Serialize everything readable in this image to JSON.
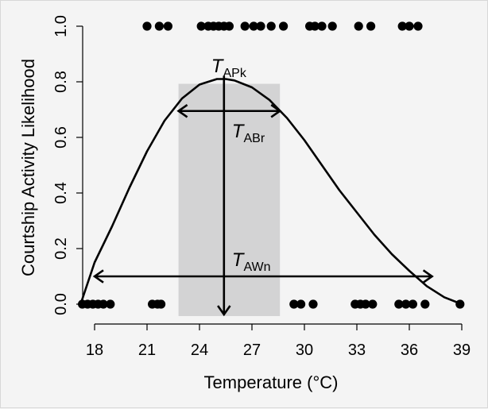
{
  "chart_data": {
    "type": "scatter",
    "xlabel": "Temperature (°C)",
    "ylabel": "Courtship Activity Likelihood",
    "xlim": [
      17,
      39
    ],
    "ylim": [
      0,
      1.0
    ],
    "x_ticks": [
      18,
      21,
      24,
      27,
      30,
      33,
      36,
      39
    ],
    "y_ticks": [
      0.0,
      0.2,
      0.4,
      0.6,
      0.8,
      1.0
    ],
    "y_tick_labels": [
      "0.0",
      "0.2",
      "0.4",
      "0.6",
      "0.8",
      "1.0"
    ],
    "grid": false,
    "points_y1": [
      21.0,
      21.7,
      22.2,
      24.1,
      24.5,
      24.8,
      25.1,
      25.4,
      25.7,
      26.6,
      27.1,
      27.5,
      28.1,
      28.8,
      30.3,
      30.6,
      31.0,
      31.6,
      33.1,
      33.8,
      35.6,
      36.0,
      36.5
    ],
    "points_y0": [
      17.3,
      17.6,
      17.9,
      18.2,
      18.5,
      18.9,
      21.3,
      21.6,
      21.8,
      29.4,
      29.8,
      30.5,
      32.9,
      33.2,
      33.5,
      33.9,
      35.4,
      35.8,
      36.2,
      36.9,
      38.9
    ],
    "curve": {
      "type": "fitted",
      "x": [
        17.2,
        18,
        19,
        20,
        21,
        22,
        23,
        24,
        25,
        25.5,
        26,
        27,
        28,
        29,
        30,
        31,
        32,
        33,
        34,
        35,
        36,
        37,
        38,
        39
      ],
      "y": [
        0.0,
        0.15,
        0.28,
        0.42,
        0.55,
        0.66,
        0.74,
        0.79,
        0.81,
        0.81,
        0.805,
        0.78,
        0.735,
        0.67,
        0.59,
        0.5,
        0.41,
        0.33,
        0.25,
        0.18,
        0.12,
        0.065,
        0.025,
        0.0
      ]
    },
    "peak": {
      "x": 25.4,
      "y": 0.81
    },
    "breadth_band": {
      "x_start": 22.8,
      "x_end": 28.6,
      "y": 0.695
    },
    "window": {
      "x_start": 18.0,
      "x_end": 37.3,
      "y": 0.1
    },
    "annotations": {
      "peak_label": {
        "main": "T",
        "sub": "APk"
      },
      "breadth_label": {
        "main": "T",
        "sub": "ABr"
      },
      "window_label": {
        "main": "T",
        "sub": "AWn"
      }
    },
    "colors": {
      "band": "#d3d3d4",
      "line": "#000000",
      "points": "#000000",
      "background": "#f4f4f4"
    }
  }
}
